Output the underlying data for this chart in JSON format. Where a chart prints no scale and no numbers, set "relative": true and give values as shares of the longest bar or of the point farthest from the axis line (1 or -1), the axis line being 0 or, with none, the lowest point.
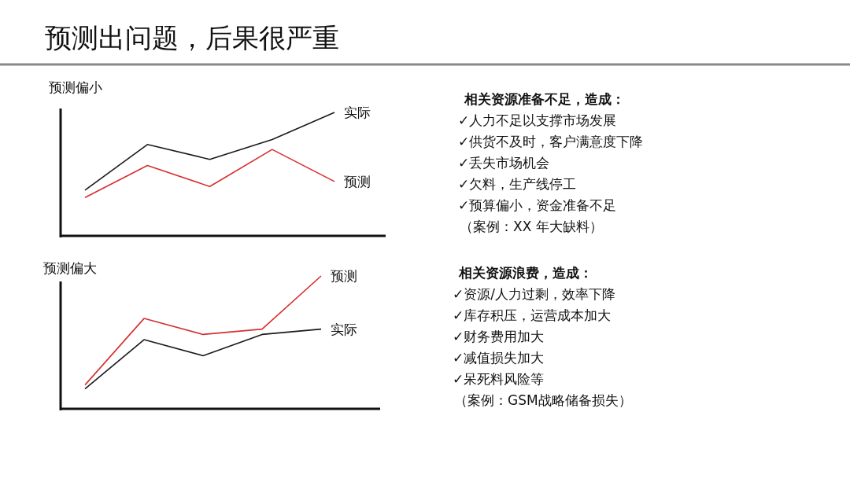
{
  "chart_data": [
    {
      "type": "other",
      "title": "预测出问题，后果很严重"
    },
    {
      "type": "line",
      "title": "预测偏小",
      "relative": true,
      "categories": [
        null,
        null,
        null,
        null,
        null
      ],
      "series": [
        {
          "name": "实际",
          "color": "#1a1a1a",
          "values": [
            0.37,
            0.74,
            0.62,
            0.78,
            1
          ]
        },
        {
          "name": "预测",
          "color": "#d62f2f",
          "values": [
            0.31,
            0.57,
            0.4,
            0.7,
            0.44
          ]
        }
      ]
    },
    {
      "type": "other",
      "title": "相关资源准备不足，造成：",
      "annotations": [
        "✓人力不足以支撑市场发展",
        "✓供货不及时，客户满意度下降",
        "✓丢失市场机会",
        "✓欠料，生产线停工",
        "✓预算偏小，资金准备不足",
        "（案例：XX 年大缺料）"
      ]
    },
    {
      "type": "line",
      "title": "预测偏大",
      "relative": true,
      "categories": [
        null,
        null,
        null,
        null,
        null
      ],
      "series": [
        {
          "name": "预测",
          "color": "#d62f2f",
          "values": [
            0.18,
            0.68,
            0.56,
            0.6,
            1
          ]
        },
        {
          "name": "实际",
          "color": "#1a1a1a",
          "values": [
            0.15,
            0.52,
            0.4,
            0.56,
            0.6
          ]
        }
      ]
    },
    {
      "type": "other",
      "title": "相关资源浪费，造成：",
      "annotations": [
        "✓资源/人力过剩，效率下降",
        "✓库存积压，运营成本加大",
        "✓财务费用加大",
        "✓减值损失加大",
        "✓呆死料风险等",
        "（案例：GSM战略储备损失）"
      ]
    }
  ]
}
